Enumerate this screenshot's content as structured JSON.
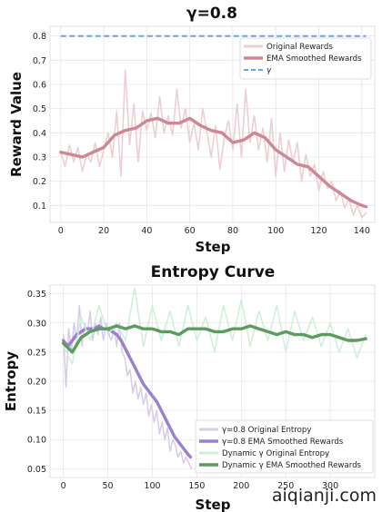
{
  "watermark": "aiqianji.com",
  "chart_data": [
    {
      "type": "line",
      "title": "γ=0.8",
      "xlabel": "Step",
      "ylabel": "Reward Value",
      "xlim": [
        -5,
        146
      ],
      "ylim": [
        0.03,
        0.84
      ],
      "xticks": [
        "0",
        "20",
        "40",
        "60",
        "80",
        "100",
        "120",
        "140"
      ],
      "yticks": [
        "0.1",
        "0.2",
        "0.3",
        "0.4",
        "0.5",
        "0.6",
        "0.7",
        "0.8"
      ],
      "grid": true,
      "legend_position": "top-right",
      "series": [
        {
          "name": "Original Rewards",
          "color": "#eccfd4",
          "x": [
            0,
            2,
            4,
            6,
            8,
            10,
            12,
            14,
            16,
            18,
            20,
            22,
            24,
            26,
            28,
            30,
            32,
            34,
            36,
            38,
            40,
            42,
            44,
            46,
            48,
            50,
            52,
            54,
            56,
            58,
            60,
            62,
            64,
            66,
            68,
            70,
            72,
            74,
            76,
            78,
            80,
            82,
            84,
            86,
            88,
            90,
            92,
            94,
            96,
            98,
            100,
            102,
            104,
            106,
            108,
            110,
            112,
            114,
            116,
            118,
            120,
            122,
            124,
            126,
            128,
            130,
            132,
            134,
            136,
            138,
            140,
            142
          ],
          "y": [
            0.32,
            0.26,
            0.35,
            0.28,
            0.34,
            0.24,
            0.31,
            0.28,
            0.36,
            0.26,
            0.33,
            0.4,
            0.3,
            0.49,
            0.22,
            0.66,
            0.35,
            0.52,
            0.28,
            0.49,
            0.41,
            0.48,
            0.38,
            0.55,
            0.4,
            0.47,
            0.39,
            0.58,
            0.42,
            0.5,
            0.36,
            0.44,
            0.33,
            0.5,
            0.4,
            0.3,
            0.43,
            0.25,
            0.38,
            0.45,
            0.33,
            0.52,
            0.3,
            0.58,
            0.36,
            0.47,
            0.33,
            0.42,
            0.28,
            0.46,
            0.22,
            0.4,
            0.24,
            0.37,
            0.28,
            0.36,
            0.2,
            0.31,
            0.22,
            0.27,
            0.16,
            0.24,
            0.17,
            0.2,
            0.12,
            0.16,
            0.09,
            0.13,
            0.06,
            0.1,
            0.05,
            0.07
          ]
        },
        {
          "name": "EMA Smoothed Rewards",
          "color": "#cc8894",
          "x": [
            0,
            5,
            10,
            15,
            20,
            25,
            30,
            35,
            40,
            45,
            50,
            55,
            60,
            65,
            70,
            75,
            80,
            85,
            90,
            95,
            100,
            105,
            110,
            115,
            120,
            125,
            130,
            135,
            140,
            142
          ],
          "y": [
            0.32,
            0.31,
            0.3,
            0.32,
            0.34,
            0.39,
            0.41,
            0.42,
            0.45,
            0.46,
            0.44,
            0.44,
            0.46,
            0.43,
            0.41,
            0.4,
            0.36,
            0.37,
            0.4,
            0.38,
            0.33,
            0.3,
            0.27,
            0.26,
            0.22,
            0.18,
            0.15,
            0.12,
            0.1,
            0.095
          ]
        },
        {
          "name": "γ",
          "color": "#6da2e9",
          "style": "dashed",
          "x": [
            0,
            142
          ],
          "y": [
            0.8,
            0.8
          ]
        }
      ]
    },
    {
      "type": "line",
      "title": "Entropy Curve",
      "xlabel": "Step",
      "ylabel": "Entropy",
      "xlim": [
        -15,
        350
      ],
      "ylim": [
        0.035,
        0.365
      ],
      "xticks": [
        "0",
        "50",
        "100",
        "150",
        "200",
        "250",
        "300"
      ],
      "yticks": [
        "0.05",
        "0.10",
        "0.15",
        "0.20",
        "0.25",
        "0.30",
        "0.35"
      ],
      "grid": true,
      "legend_position": "bottom-right",
      "series": [
        {
          "name": "γ=0.8 Original Entropy",
          "color": "#d6cce9",
          "x": [
            0,
            3,
            6,
            9,
            12,
            15,
            18,
            21,
            24,
            27,
            30,
            33,
            36,
            39,
            42,
            45,
            48,
            51,
            54,
            57,
            60,
            63,
            66,
            69,
            72,
            75,
            78,
            81,
            84,
            87,
            90,
            93,
            96,
            99,
            102,
            105,
            108,
            111,
            114,
            117,
            120,
            123,
            126,
            129,
            132,
            135,
            138,
            141,
            144
          ],
          "y": [
            0.28,
            0.19,
            0.29,
            0.25,
            0.3,
            0.27,
            0.33,
            0.26,
            0.3,
            0.28,
            0.32,
            0.27,
            0.3,
            0.28,
            0.31,
            0.27,
            0.3,
            0.28,
            0.27,
            0.29,
            0.26,
            0.3,
            0.25,
            0.24,
            0.21,
            0.22,
            0.18,
            0.2,
            0.17,
            0.19,
            0.16,
            0.18,
            0.14,
            0.16,
            0.13,
            0.15,
            0.11,
            0.13,
            0.1,
            0.12,
            0.08,
            0.1,
            0.09,
            0.07,
            0.08,
            0.06,
            0.07,
            0.06,
            0.05
          ]
        },
        {
          "name": "γ=0.8 EMA Smoothed Rewards",
          "color": "#9b80cc",
          "x": [
            0,
            5,
            10,
            15,
            20,
            25,
            30,
            35,
            40,
            45,
            50,
            55,
            60,
            65,
            70,
            75,
            80,
            85,
            90,
            95,
            100,
            105,
            110,
            115,
            120,
            125,
            130,
            135,
            140,
            143
          ],
          "y": [
            0.27,
            0.26,
            0.27,
            0.28,
            0.285,
            0.29,
            0.29,
            0.29,
            0.295,
            0.29,
            0.29,
            0.285,
            0.28,
            0.27,
            0.255,
            0.24,
            0.225,
            0.21,
            0.195,
            0.185,
            0.175,
            0.165,
            0.15,
            0.135,
            0.12,
            0.105,
            0.095,
            0.085,
            0.075,
            0.07
          ]
        },
        {
          "name": "Dynamic γ Original Entropy",
          "color": "#cdefd8",
          "x": [
            0,
            10,
            20,
            30,
            40,
            50,
            60,
            70,
            80,
            90,
            100,
            110,
            120,
            130,
            140,
            150,
            160,
            170,
            180,
            190,
            200,
            210,
            220,
            230,
            240,
            250,
            260,
            270,
            280,
            290,
            300,
            310,
            320,
            330,
            340
          ],
          "y": [
            0.26,
            0.23,
            0.31,
            0.27,
            0.33,
            0.28,
            0.3,
            0.27,
            0.36,
            0.26,
            0.33,
            0.27,
            0.32,
            0.26,
            0.33,
            0.27,
            0.31,
            0.25,
            0.33,
            0.27,
            0.34,
            0.26,
            0.32,
            0.27,
            0.33,
            0.25,
            0.32,
            0.27,
            0.31,
            0.26,
            0.3,
            0.25,
            0.29,
            0.24,
            0.28
          ]
        },
        {
          "name": "Dynamic γ EMA Smoothed Rewards",
          "color": "#5c9c5f",
          "x": [
            0,
            10,
            20,
            30,
            40,
            50,
            60,
            70,
            80,
            90,
            100,
            110,
            120,
            130,
            140,
            150,
            160,
            170,
            180,
            190,
            200,
            210,
            220,
            230,
            240,
            250,
            260,
            270,
            280,
            290,
            300,
            310,
            320,
            330,
            340
          ],
          "y": [
            0.265,
            0.25,
            0.275,
            0.285,
            0.29,
            0.29,
            0.295,
            0.29,
            0.295,
            0.29,
            0.29,
            0.285,
            0.285,
            0.28,
            0.29,
            0.29,
            0.29,
            0.285,
            0.285,
            0.29,
            0.29,
            0.295,
            0.29,
            0.285,
            0.28,
            0.285,
            0.28,
            0.28,
            0.275,
            0.28,
            0.28,
            0.275,
            0.27,
            0.27,
            0.273
          ]
        }
      ]
    }
  ]
}
